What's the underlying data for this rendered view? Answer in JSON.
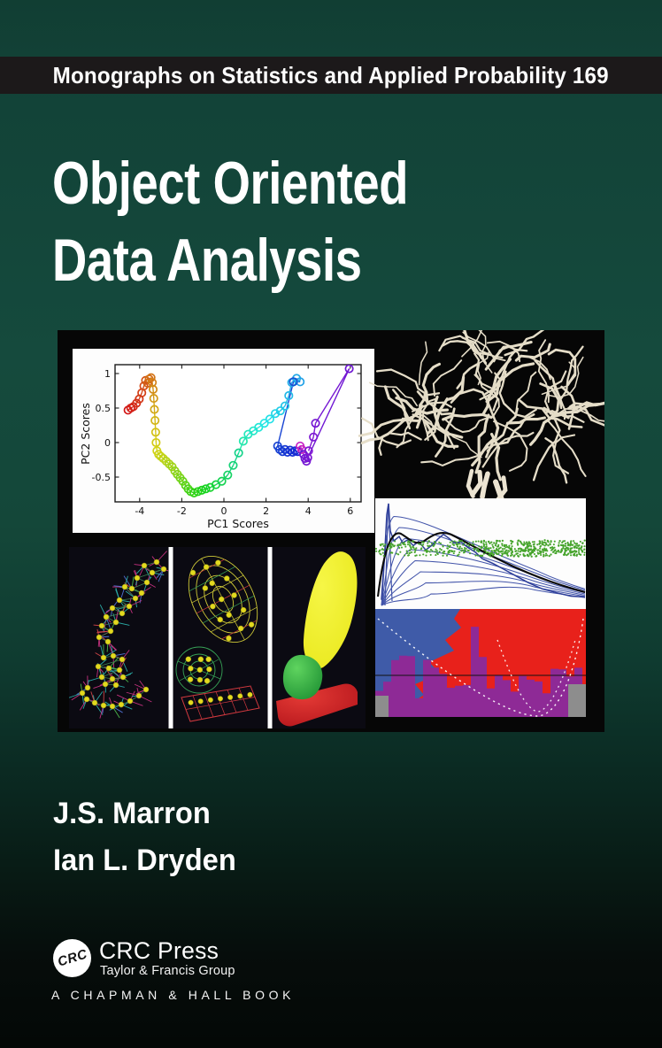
{
  "series_banner": {
    "text": "Monographs on Statistics and Applied Probability 169"
  },
  "title": {
    "line1": "Object Oriented",
    "line2": "Data Analysis"
  },
  "authors": [
    "J.S. Marron",
    "Ian L. Dryden"
  ],
  "publisher": {
    "logo_text": "CRC",
    "name": "CRC Press",
    "group": "Taylor & Francis Group",
    "imprint": "A CHAPMAN & HALL BOOK"
  },
  "colors": {
    "background_top": "#124237",
    "background_mid": "#154a3d",
    "background_bottom": "#04 0806",
    "banner_bg": "#1c191a",
    "text": "#ffffff"
  },
  "chart_data": {
    "type": "scatter",
    "title": "",
    "xlabel": "PC1 Scores",
    "ylabel": "PC2 Scores",
    "xticks": [
      -4,
      -2,
      0,
      2,
      4,
      6
    ],
    "yticks": [
      -0.5,
      0,
      0.5,
      1
    ],
    "xlim": [
      -5.1,
      6.55
    ],
    "ylim": [
      -0.86,
      1.13
    ],
    "legend": "none",
    "grid": false,
    "note": "rainbow-ordered trajectory of PCA scores, circles joined by lines; [x, y, hue]",
    "points": [
      [
        -4.55,
        0.47,
        0
      ],
      [
        -4.42,
        0.5,
        2
      ],
      [
        -4.3,
        0.52,
        4
      ],
      [
        -4.15,
        0.57,
        7
      ],
      [
        -4.02,
        0.63,
        10
      ],
      [
        -3.9,
        0.72,
        13
      ],
      [
        -3.8,
        0.82,
        16
      ],
      [
        -3.72,
        0.9,
        20
      ],
      [
        -3.62,
        0.86,
        24
      ],
      [
        -3.55,
        0.92,
        27
      ],
      [
        -3.46,
        0.94,
        30
      ],
      [
        -3.4,
        0.87,
        33
      ],
      [
        -3.36,
        0.77,
        37
      ],
      [
        -3.33,
        0.64,
        41
      ],
      [
        -3.3,
        0.48,
        46
      ],
      [
        -3.27,
        0.32,
        50
      ],
      [
        -3.24,
        0.15,
        54
      ],
      [
        -3.22,
        0.0,
        57
      ],
      [
        -3.18,
        -0.12,
        60
      ],
      [
        -3.1,
        -0.17,
        62
      ],
      [
        -3.0,
        -0.2,
        64
      ],
      [
        -2.88,
        -0.23,
        66
      ],
      [
        -2.74,
        -0.27,
        69
      ],
      [
        -2.6,
        -0.31,
        73
      ],
      [
        -2.46,
        -0.35,
        77
      ],
      [
        -2.33,
        -0.41,
        81
      ],
      [
        -2.21,
        -0.46,
        85
      ],
      [
        -2.08,
        -0.51,
        89
      ],
      [
        -1.95,
        -0.56,
        94
      ],
      [
        -1.82,
        -0.62,
        99
      ],
      [
        -1.7,
        -0.67,
        103
      ],
      [
        -1.57,
        -0.71,
        107
      ],
      [
        -1.42,
        -0.73,
        111
      ],
      [
        -1.24,
        -0.71,
        115
      ],
      [
        -1.05,
        -0.69,
        119
      ],
      [
        -0.86,
        -0.67,
        123
      ],
      [
        -0.65,
        -0.65,
        127
      ],
      [
        -0.38,
        -0.61,
        133
      ],
      [
        -0.1,
        -0.56,
        139
      ],
      [
        0.18,
        -0.47,
        145
      ],
      [
        0.44,
        -0.33,
        151
      ],
      [
        0.7,
        -0.15,
        157
      ],
      [
        0.92,
        0.02,
        162
      ],
      [
        1.15,
        0.12,
        167
      ],
      [
        1.4,
        0.17,
        171
      ],
      [
        1.65,
        0.22,
        175
      ],
      [
        1.92,
        0.28,
        179
      ],
      [
        2.18,
        0.34,
        182
      ],
      [
        2.44,
        0.42,
        185
      ],
      [
        2.68,
        0.46,
        188
      ],
      [
        2.9,
        0.53,
        191
      ],
      [
        3.08,
        0.68,
        194
      ],
      [
        3.22,
        0.87,
        197
      ],
      [
        3.45,
        0.93,
        199
      ],
      [
        3.62,
        0.88,
        201
      ],
      [
        3.3,
        0.88,
        222
      ],
      [
        2.55,
        -0.05,
        226
      ],
      [
        2.65,
        -0.1,
        227
      ],
      [
        2.78,
        -0.13,
        228
      ],
      [
        2.9,
        -0.1,
        229
      ],
      [
        3.02,
        -0.14,
        230
      ],
      [
        3.14,
        -0.11,
        231
      ],
      [
        3.26,
        -0.14,
        232
      ],
      [
        3.38,
        -0.12,
        233
      ],
      [
        3.5,
        -0.13,
        234
      ],
      [
        3.62,
        -0.05,
        300
      ],
      [
        3.7,
        -0.1,
        303
      ],
      [
        3.78,
        -0.17,
        266
      ],
      [
        3.85,
        -0.23,
        268
      ],
      [
        3.92,
        -0.27,
        270
      ],
      [
        3.98,
        -0.22,
        272
      ],
      [
        5.95,
        1.07,
        268
      ],
      [
        4.35,
        0.28,
        270
      ],
      [
        4.25,
        0.08,
        272
      ],
      [
        4.02,
        -0.12,
        274
      ]
    ]
  },
  "montage": {
    "bg": "#060606",
    "panel_bg": "#0b0a12",
    "separator": "#ffffff",
    "artery_color": "#e5ddc8",
    "density": {
      "bg": "#fdfdfd",
      "curve": "#4254aa",
      "envelope": "#2e3e99",
      "mean_curve": "#0a0a0a",
      "scatter": "#46a42c"
    },
    "redplot": {
      "bg": "#e8211b",
      "blue": "#3f5ba8",
      "purple": "#8e2a96",
      "gray": "#8d8d8d",
      "dotted": "#ffffff",
      "line": "#111111"
    },
    "srep": {
      "atom": "#e3d91f",
      "spikes": [
        "#c2307d",
        "#2aa9a4",
        "#cf4448",
        "#4f6fd0",
        "#49b34a"
      ],
      "link": "#3f7f52",
      "mesh_yellow": "#cfc937",
      "mesh_green": "#37a357",
      "mesh_red": "#d2393f",
      "solid_yellow": "#e9e81c",
      "solid_green": "#2fae3e",
      "solid_red": "#d42026"
    }
  }
}
